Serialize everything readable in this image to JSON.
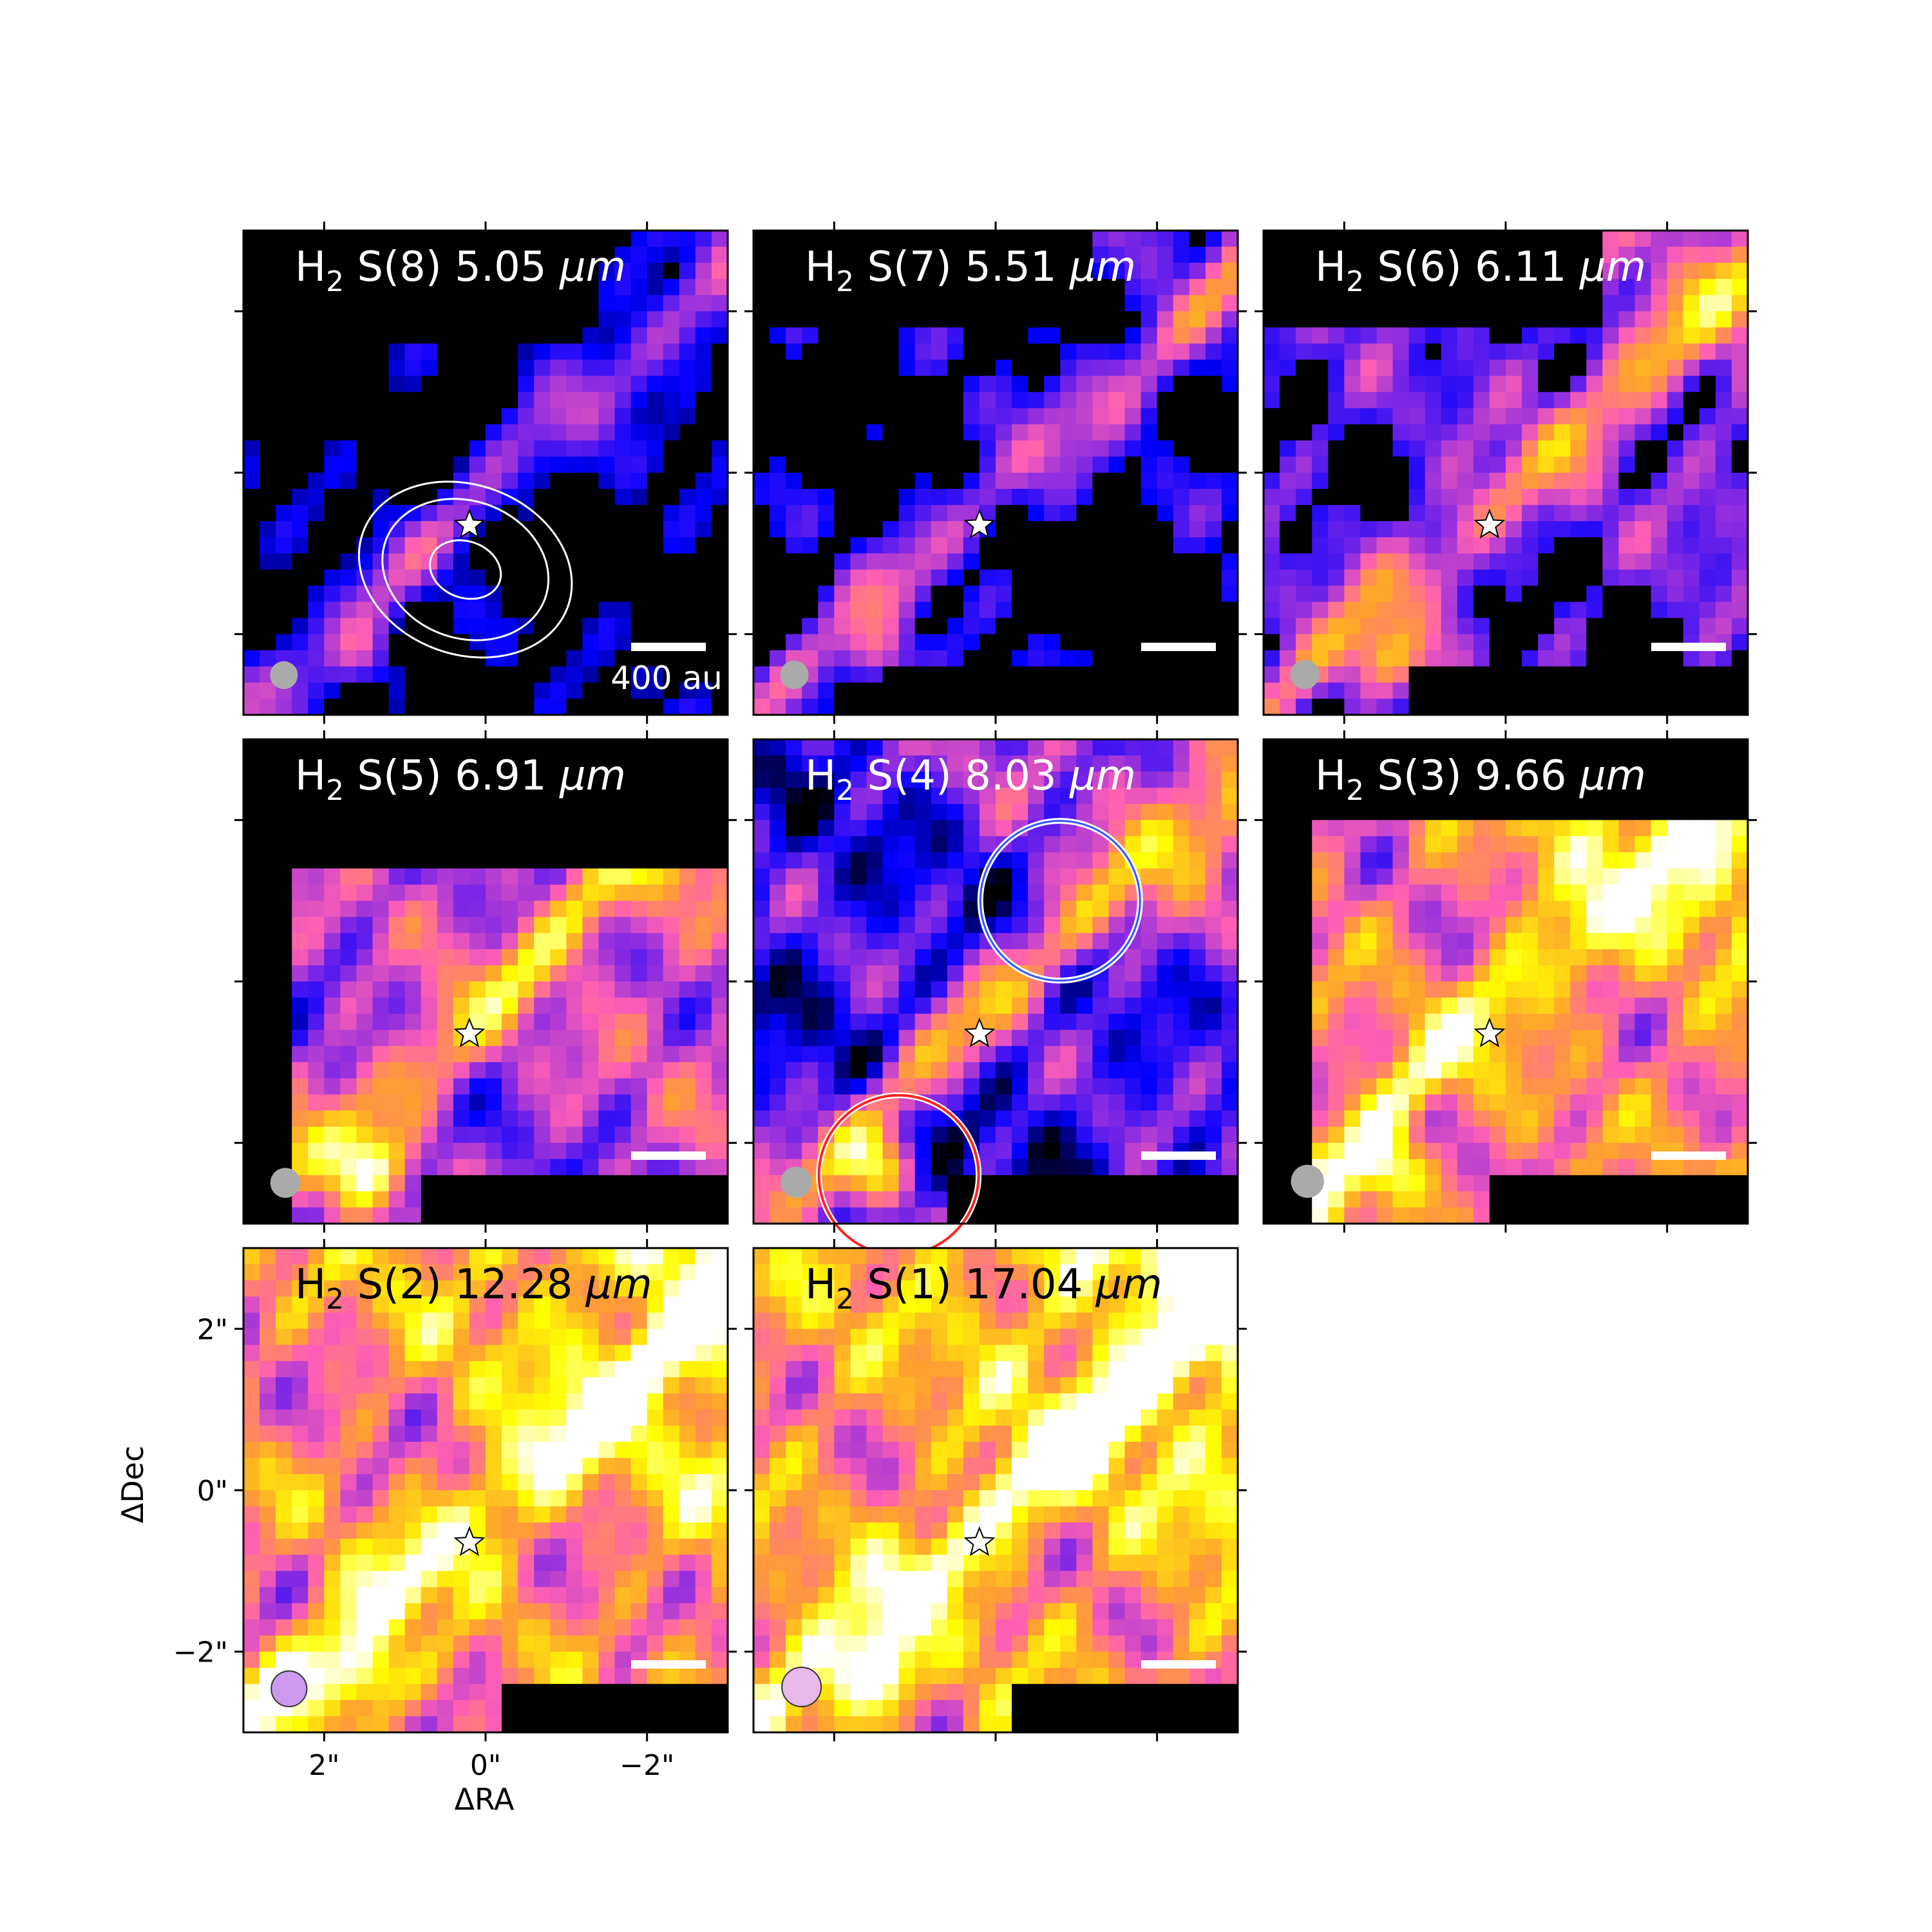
{
  "chart_data": {
    "type": "heatmap",
    "xlabel": "ΔRA",
    "ylabel": "ΔDec",
    "x_ticks": [
      "2\"",
      "0\"",
      "−2\""
    ],
    "y_ticks": [
      "2\"",
      "0\"",
      "−2\""
    ],
    "xlim": [
      3.0,
      -3.0
    ],
    "ylim": [
      -3.0,
      3.0
    ],
    "tick_values": [
      2,
      0,
      -2
    ],
    "star_position": [
      0.2,
      -0.65
    ],
    "colormap": [
      "#000000",
      "#0000ff",
      "#8a2be2",
      "#ff5fb4",
      "#ffa030",
      "#ffff00",
      "#ffffff"
    ],
    "scale_bar_label": "400 au",
    "panels": [
      {
        "label_sub": "2",
        "label_pre": "H",
        "label_post": " S(8) 5.05 ",
        "label_unit": "μm",
        "title_color": "#ffffff",
        "beam_color": "#aaaaaa",
        "beam_size": 0.25,
        "texture": 1,
        "base": 0.08,
        "edge": [
          0.6,
          0.35
        ],
        "contours": true
      },
      {
        "label_sub": "2",
        "label_pre": "H",
        "label_post": " S(7) 5.51 ",
        "label_unit": "μm",
        "title_color": "#ffffff",
        "beam_color": "#aaaaaa",
        "beam_size": 0.27,
        "texture": 2,
        "base": 0.12,
        "edge": [
          0.7,
          0.45
        ]
      },
      {
        "label_sub": "2",
        "label_pre": "H",
        "label_post": " S(6) 6.11 ",
        "label_unit": "μm",
        "title_color": "#ffffff",
        "beam_color": "#aaaaaa",
        "beam_size": 0.29,
        "texture": 3,
        "base": 0.3,
        "edge": [
          0.8,
          0.6
        ]
      },
      {
        "label_sub": "2",
        "label_pre": "H",
        "label_post": " S(5) 6.91 ",
        "label_unit": "μm",
        "title_color": "#ffffff",
        "beam_color": "#aaaaaa",
        "beam_size": 0.32,
        "texture": 4,
        "base": 0.45,
        "edge": [
          0.85,
          0.65
        ]
      },
      {
        "label_sub": "2",
        "label_pre": "H",
        "label_post": " S(4) 8.03 ",
        "label_unit": "μm",
        "title_color": "#ffffff",
        "beam_color": "#aaaaaa",
        "beam_size": 0.36,
        "texture": 5,
        "base": 0.22,
        "edge": [
          0.9,
          0.8
        ],
        "circles": true
      },
      {
        "label_sub": "2",
        "label_pre": "H",
        "label_post": " S(3) 9.66 ",
        "label_unit": "μm",
        "title_color": "#ffffff",
        "beam_color": "#aaaaaa",
        "beam_size": 0.42,
        "texture": 6,
        "base": 0.58,
        "edge": [
          0.95,
          0.85
        ]
      },
      {
        "label_sub": "2",
        "label_pre": "H",
        "label_post": " S(2) 12.28 ",
        "label_unit": "μm",
        "title_color": "#000000",
        "beam_color": "#cc99ee",
        "beam_size": 0.5,
        "texture": 7,
        "base": 0.4,
        "edge": [
          1.0,
          0.92
        ],
        "show_axes": true
      },
      {
        "label_sub": "2",
        "label_pre": "H",
        "label_post": " S(1) 17.04 ",
        "label_unit": "μm",
        "title_color": "#000000",
        "beam_color": "#e8b8e8",
        "beam_size": 0.62,
        "texture": 8,
        "base": 0.45,
        "edge": [
          1.0,
          0.92
        ]
      }
    ]
  }
}
